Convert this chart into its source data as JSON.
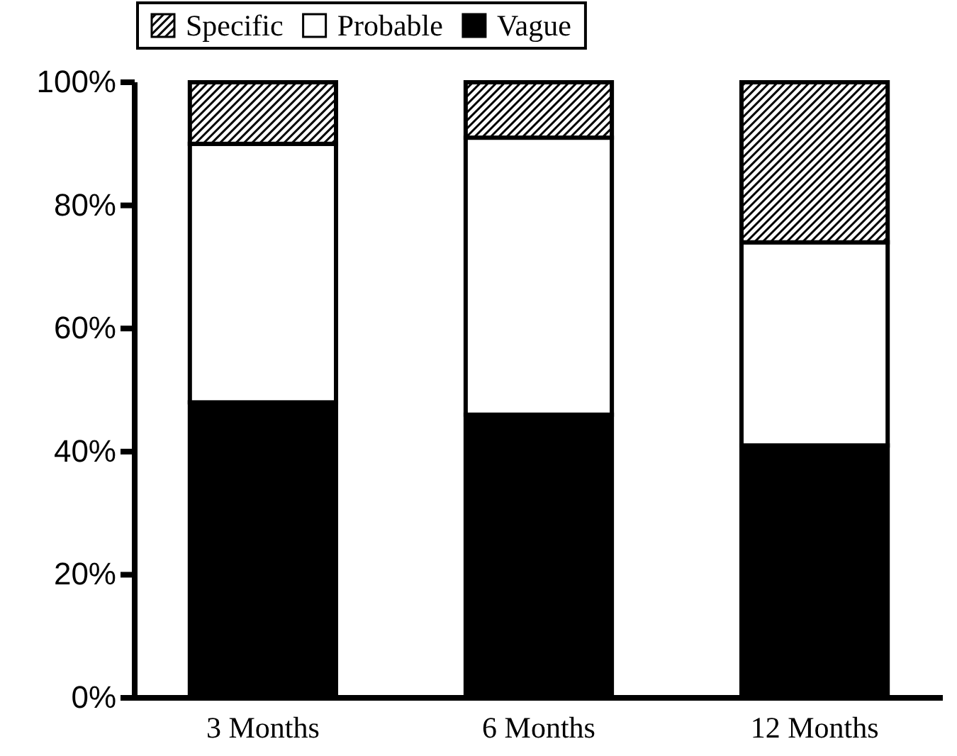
{
  "chart_data": {
    "type": "bar",
    "stacked": true,
    "categories": [
      "3 Months",
      "6 Months",
      "12 Months"
    ],
    "series": [
      {
        "name": "Vague",
        "color": "#000000",
        "values": [
          48,
          46,
          41
        ]
      },
      {
        "name": "Probable",
        "color": "#ffffff",
        "values": [
          42,
          45,
          33
        ]
      },
      {
        "name": "Specific",
        "color": "#000000",
        "values": [
          10,
          9,
          26
        ]
      }
    ],
    "ylim": [
      0,
      100
    ],
    "yticks": [
      {
        "value": 0,
        "label": "0%"
      },
      {
        "value": 20,
        "label": "20%"
      },
      {
        "value": 40,
        "label": "40%"
      },
      {
        "value": 60,
        "label": "60%"
      },
      {
        "value": 80,
        "label": "80%"
      },
      {
        "value": 100,
        "label": "100%"
      }
    ],
    "legend": "top",
    "grid": false
  }
}
